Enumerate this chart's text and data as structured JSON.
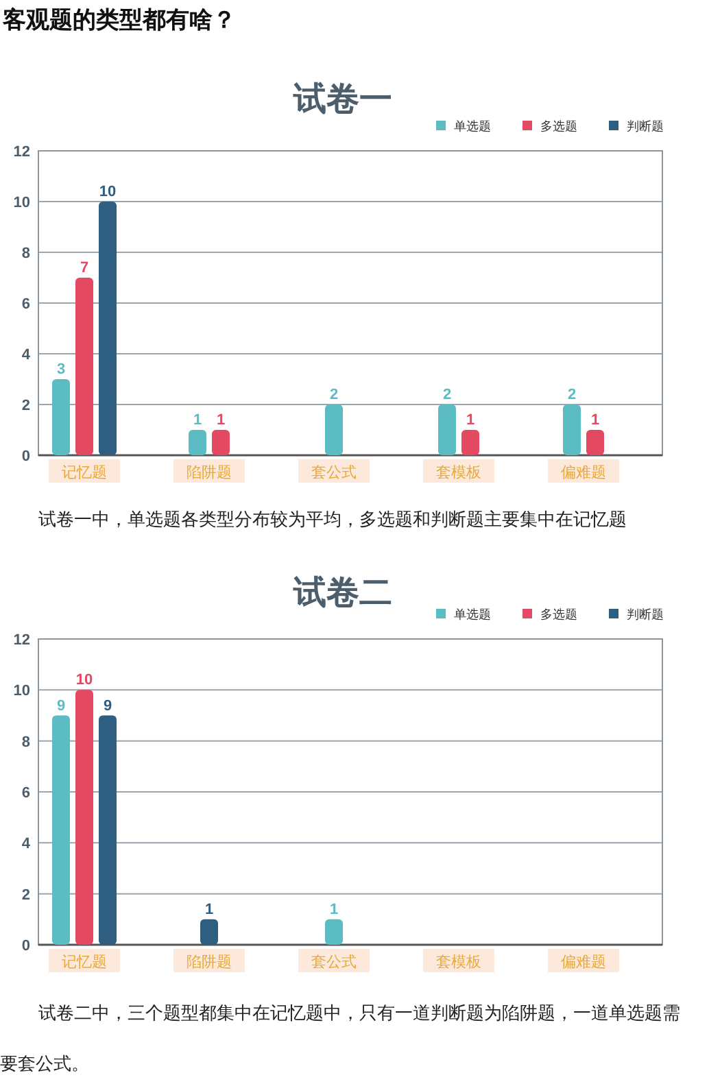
{
  "chart_data": [
    {
      "type": "bar",
      "title": "试卷一",
      "categories": [
        "记忆题",
        "陷阱题",
        "套公式",
        "套模板",
        "偏难题"
      ],
      "series": [
        {
          "name": "单选题",
          "color": "#5bbcc4",
          "values": [
            3,
            1,
            2,
            2,
            2
          ]
        },
        {
          "name": "多选题",
          "color": "#e34a62",
          "values": [
            7,
            1,
            null,
            1,
            1
          ]
        },
        {
          "name": "判断题",
          "color": "#2e5f80",
          "values": [
            10,
            null,
            null,
            null,
            null
          ]
        }
      ],
      "ylim": [
        0,
        12
      ],
      "yticks": [
        0,
        2,
        4,
        6,
        8,
        10,
        12
      ],
      "grid": "y",
      "legend": "top right",
      "data_labels": true,
      "annotations": [
        "客观题的类型都有啥？",
        "试卷一中，单选题各类型分布较为平均，多选题和判断题主要集中在记忆题"
      ]
    },
    {
      "type": "bar",
      "title": "试卷二",
      "categories": [
        "记忆题",
        "陷阱题",
        "套公式",
        "套模板",
        "偏难题"
      ],
      "series": [
        {
          "name": "单选题",
          "color": "#5bbcc4",
          "values": [
            9,
            null,
            1,
            null,
            null
          ]
        },
        {
          "name": "多选题",
          "color": "#e34a62",
          "values": [
            10,
            null,
            null,
            null,
            null
          ]
        },
        {
          "name": "判断题",
          "color": "#2e5f80",
          "values": [
            9,
            1,
            null,
            null,
            null
          ]
        }
      ],
      "ylim": [
        0,
        12
      ],
      "yticks": [
        0,
        2,
        4,
        6,
        8,
        10,
        12
      ],
      "grid": "y",
      "legend": "top right",
      "data_labels": true,
      "annotations": [
        "试卷二中，三个题型都集中在记忆题中，只有一道判断题为陷阱题，一道单选题需要套公式。"
      ]
    }
  ]
}
